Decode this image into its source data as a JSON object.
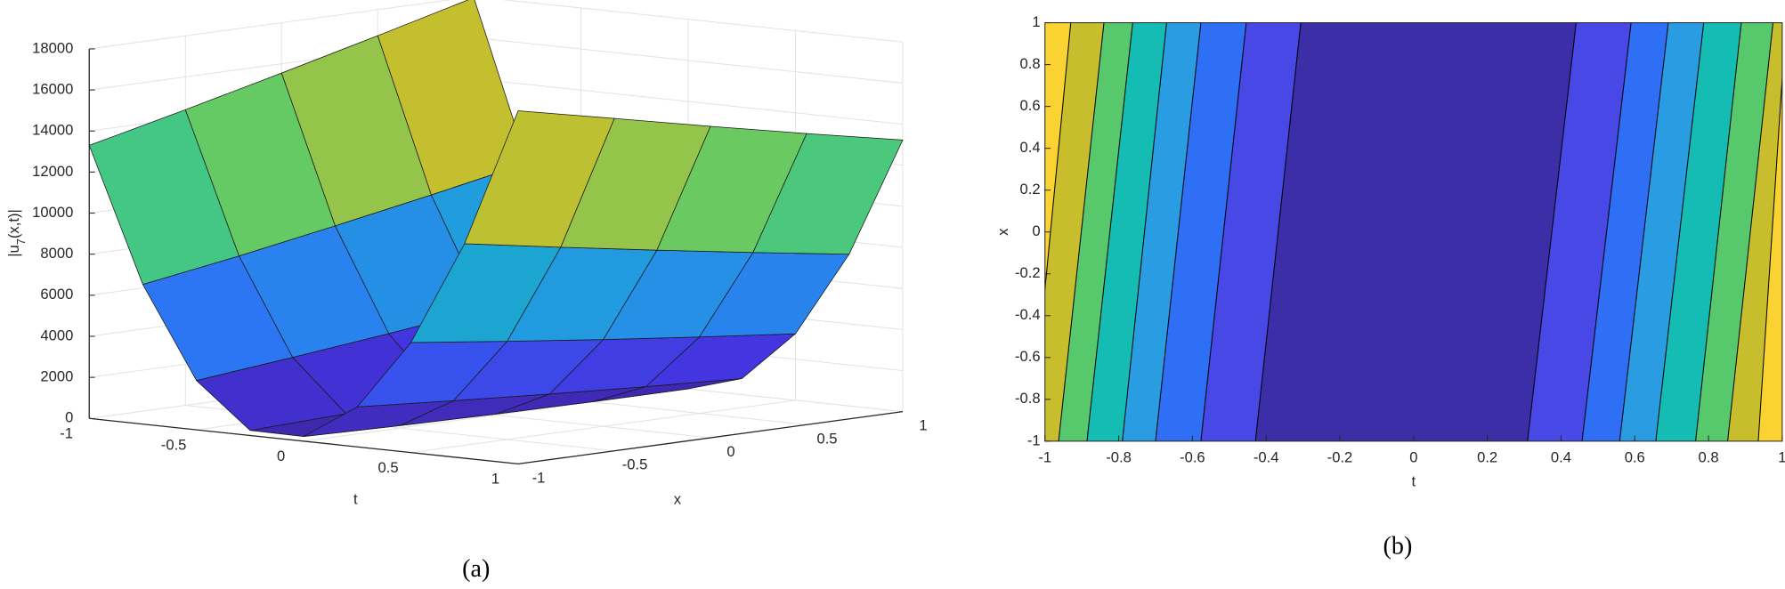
{
  "chart_data": [
    {
      "type": "surface",
      "t": [
        -1,
        -0.75,
        -0.5,
        -0.25,
        0,
        0.25,
        0.5,
        0.75,
        1
      ],
      "x": [
        -1,
        -0.5,
        0,
        0.5,
        1
      ],
      "z": [
        [
          13300,
          6800,
          2400,
          250,
          230,
          1950,
          5360,
          10450,
          17200
        ],
        [
          14400,
          7550,
          2890,
          420,
          120,
          1610,
          4780,
          9640,
          16190
        ],
        [
          15550,
          8380,
          3410,
          640,
          50,
          1300,
          4230,
          8860,
          15170
        ],
        [
          16730,
          9250,
          3970,
          890,
          8,
          1020,
          3720,
          8110,
          14180
        ],
        [
          17950,
          10170,
          4580,
          1190,
          2,
          780,
          3240,
          7390,
          13230
        ]
      ],
      "tlim": [
        -1,
        1
      ],
      "xlim": [
        -1,
        1
      ],
      "zlim": [
        0,
        18000
      ],
      "tticks": [
        -1,
        -0.5,
        0,
        0.5,
        1
      ],
      "xticks": [
        -1,
        -0.5,
        0,
        0.5,
        1
      ],
      "zticks": [
        0,
        2000,
        4000,
        6000,
        8000,
        10000,
        12000,
        14000,
        16000,
        18000
      ],
      "tlabel": "t",
      "xlabel": "x",
      "zlabel": [
        "|u",
        "7",
        "(x,t)|"
      ],
      "colormap": [
        "#3e26a8",
        "#4335e0",
        "#2e6ff8",
        "#2398e1",
        "#12bcb8",
        "#5ccb6a",
        "#c3bf2e",
        "#fbb83a",
        "#f9fb15"
      ],
      "edge_color": "#1a1a1a",
      "grid": true,
      "caption": "(a)"
    },
    {
      "type": "contour",
      "xlim": [
        -1,
        1
      ],
      "ylim": [
        -1,
        1
      ],
      "xticks": [
        -1,
        -0.8,
        -0.6,
        -0.4,
        -0.2,
        0,
        0.2,
        0.4,
        0.6,
        0.8,
        1
      ],
      "yticks": [
        -1,
        -0.8,
        -0.6,
        -0.4,
        -0.2,
        0,
        0.2,
        0.4,
        0.6,
        0.8,
        1
      ],
      "xlabel": "t",
      "ylabel": "x",
      "boundaries": [
        [
          -1.04,
          -0.93
        ],
        [
          -0.963,
          -0.84
        ],
        [
          -0.886,
          -0.762
        ],
        [
          -0.79,
          -0.67
        ],
        [
          -0.7,
          -0.577
        ],
        [
          -0.577,
          -0.454
        ],
        [
          -0.429,
          -0.306
        ],
        [
          0.309,
          0.441
        ],
        [
          0.457,
          0.59
        ],
        [
          0.559,
          0.691
        ],
        [
          0.657,
          0.787
        ],
        [
          0.765,
          0.889
        ],
        [
          0.852,
          0.975
        ],
        [
          0.935,
          1.01
        ]
      ],
      "band_colors": [
        "#fad232",
        "#c8bd2c",
        "#58c86c",
        "#14bcb4",
        "#2a9ce2",
        "#2f6ff6",
        "#4748e6",
        "#3b2ea6",
        "#4748e6",
        "#2f6ff6",
        "#2a9ce2",
        "#14bcb4",
        "#58c86c",
        "#c8bd2c",
        "#fad232"
      ],
      "caption": "(b)"
    }
  ]
}
